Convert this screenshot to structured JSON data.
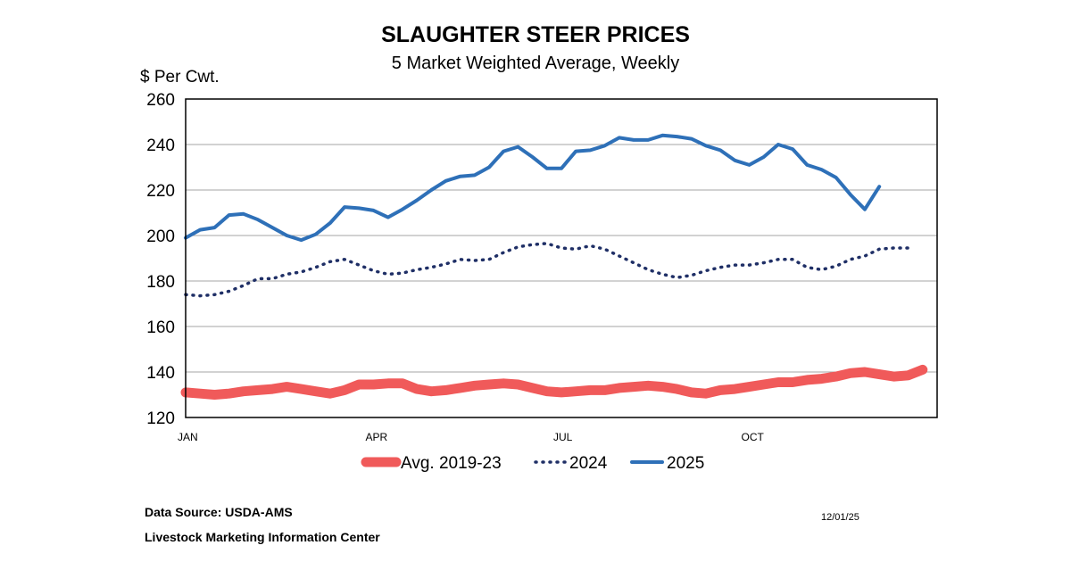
{
  "chart_data": {
    "type": "line",
    "title": "SLAUGHTER STEER PRICES",
    "subtitle": "5 Market Weighted Average, Weekly",
    "ylabel": "$ Per Cwt.",
    "ylim": [
      120,
      260
    ],
    "yticks": [
      120,
      140,
      160,
      180,
      200,
      220,
      240,
      260
    ],
    "xlim": [
      1,
      53
    ],
    "xticks": [
      {
        "label": "JAN",
        "week": 1
      },
      {
        "label": "APR",
        "week": 14
      },
      {
        "label": "JUL",
        "week": 27
      },
      {
        "label": "OCT",
        "week": 40
      }
    ],
    "grid": true,
    "legend_position": "bottom",
    "series": [
      {
        "name": "Avg. 2019-23",
        "style": "thick-solid",
        "color": "#f05a5a",
        "values": [
          131,
          130.5,
          130,
          130.5,
          131.5,
          132,
          132.5,
          133.5,
          132.5,
          131.5,
          130.5,
          132,
          134.5,
          134.5,
          135,
          135,
          132.5,
          131.5,
          132,
          133,
          134,
          134.5,
          135,
          134.5,
          133,
          131.5,
          131,
          131.5,
          132,
          132,
          133,
          133.5,
          134,
          133.5,
          132.5,
          131,
          130.5,
          132,
          132.5,
          133.5,
          134.5,
          135.5,
          135.5,
          136.5,
          137,
          138,
          139.5,
          140,
          139,
          138,
          138.5,
          141
        ]
      },
      {
        "name": "2024",
        "style": "dotted",
        "color": "#1f2f66",
        "values": [
          174,
          173.5,
          174,
          175.5,
          178,
          181,
          181,
          183,
          184,
          186,
          188.5,
          189.5,
          187,
          184.5,
          183,
          183.5,
          185,
          186,
          187.5,
          189.5,
          189,
          189.5,
          192.5,
          195,
          196,
          196.5,
          194.5,
          194,
          195.5,
          194,
          191,
          188,
          185,
          183,
          181.5,
          182.5,
          184.5,
          186,
          187,
          187,
          188,
          189.5,
          189.5,
          186,
          185,
          186.5,
          189.5,
          191,
          194,
          194.5,
          194.5
        ]
      },
      {
        "name": "2025",
        "style": "solid",
        "color": "#2e70b8",
        "values": [
          199,
          202.5,
          203.5,
          209,
          209.5,
          207,
          203.5,
          200,
          198,
          200.5,
          205.5,
          212.5,
          212,
          211,
          208,
          211.5,
          215.5,
          220,
          224,
          226,
          226.5,
          230,
          237,
          239,
          234.5,
          229.5,
          229.5,
          237,
          237.5,
          239.5,
          243,
          242,
          242,
          244,
          243.5,
          242.5,
          239.5,
          237.5,
          233,
          231,
          234.5,
          240,
          238,
          231,
          229,
          225.5,
          218,
          211.5,
          221.5
        ]
      }
    ]
  },
  "footer": {
    "source": "Data Source:  USDA-AMS",
    "org": "Livestock Marketing Information Center",
    "date": "12/01/25"
  }
}
